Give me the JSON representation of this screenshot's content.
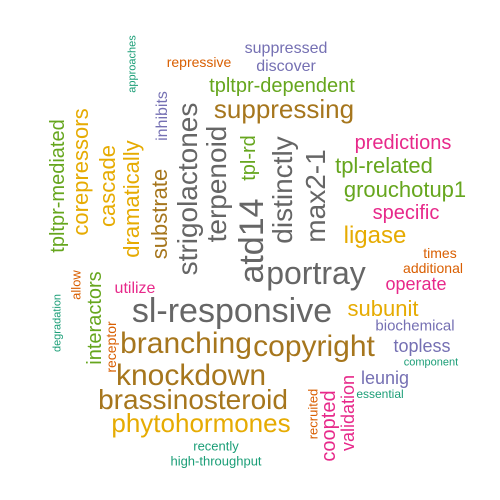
{
  "colors": {
    "gray": "#666666",
    "brown": "#a6761d",
    "gold": "#e6ab02",
    "green": "#66a61e",
    "magenta": "#e7298a",
    "purple": "#7570b3",
    "orange": "#d95f02",
    "teal": "#1b9e77"
  },
  "words": [
    {
      "text": "suppressed",
      "color": "purple"
    },
    {
      "text": "discover",
      "color": "purple"
    },
    {
      "text": "repressive",
      "color": "orange"
    },
    {
      "text": "approaches",
      "color": "teal"
    },
    {
      "text": "tpltpr-dependent",
      "color": "green"
    },
    {
      "text": "suppressing",
      "color": "brown"
    },
    {
      "text": "inhibits",
      "color": "purple"
    },
    {
      "text": "corepressors",
      "color": "gold"
    },
    {
      "text": "tpltpr-mediated",
      "color": "green"
    },
    {
      "text": "cascade",
      "color": "gold"
    },
    {
      "text": "dramatically",
      "color": "gold"
    },
    {
      "text": "substrate",
      "color": "brown"
    },
    {
      "text": "strigolactones",
      "color": "gray"
    },
    {
      "text": "terpenoid",
      "color": "gray"
    },
    {
      "text": "atd14",
      "color": "gray"
    },
    {
      "text": "tpl-rd",
      "color": "green"
    },
    {
      "text": "distinctly",
      "color": "gray"
    },
    {
      "text": "max2-1",
      "color": "gray"
    },
    {
      "text": "predictions",
      "color": "magenta"
    },
    {
      "text": "tpl-related",
      "color": "green"
    },
    {
      "text": "grouchotup1",
      "color": "green"
    },
    {
      "text": "specific",
      "color": "magenta"
    },
    {
      "text": "ligase",
      "color": "gold"
    },
    {
      "text": "times",
      "color": "orange"
    },
    {
      "text": "additional",
      "color": "orange"
    },
    {
      "text": "operate",
      "color": "magenta"
    },
    {
      "text": "portray",
      "color": "gray"
    },
    {
      "text": "interactors",
      "color": "green"
    },
    {
      "text": "allow",
      "color": "orange"
    },
    {
      "text": "degradation",
      "color": "teal"
    },
    {
      "text": "utilize",
      "color": "magenta"
    },
    {
      "text": "sl-responsive",
      "color": "gray"
    },
    {
      "text": "subunit",
      "color": "gold"
    },
    {
      "text": "biochemical",
      "color": "purple"
    },
    {
      "text": "receptor",
      "color": "orange"
    },
    {
      "text": "branching",
      "color": "brown"
    },
    {
      "text": "copyright",
      "color": "brown"
    },
    {
      "text": "topless",
      "color": "purple"
    },
    {
      "text": "component",
      "color": "teal"
    },
    {
      "text": "knockdown",
      "color": "brown"
    },
    {
      "text": "leunig",
      "color": "purple"
    },
    {
      "text": "brassinosteroid",
      "color": "brown"
    },
    {
      "text": "essential",
      "color": "teal"
    },
    {
      "text": "recruited",
      "color": "orange"
    },
    {
      "text": "validation",
      "color": "magenta"
    },
    {
      "text": "coopted",
      "color": "magenta"
    },
    {
      "text": "phytohormones",
      "color": "gold"
    },
    {
      "text": "recently",
      "color": "teal"
    },
    {
      "text": "high-throughput",
      "color": "teal"
    }
  ]
}
